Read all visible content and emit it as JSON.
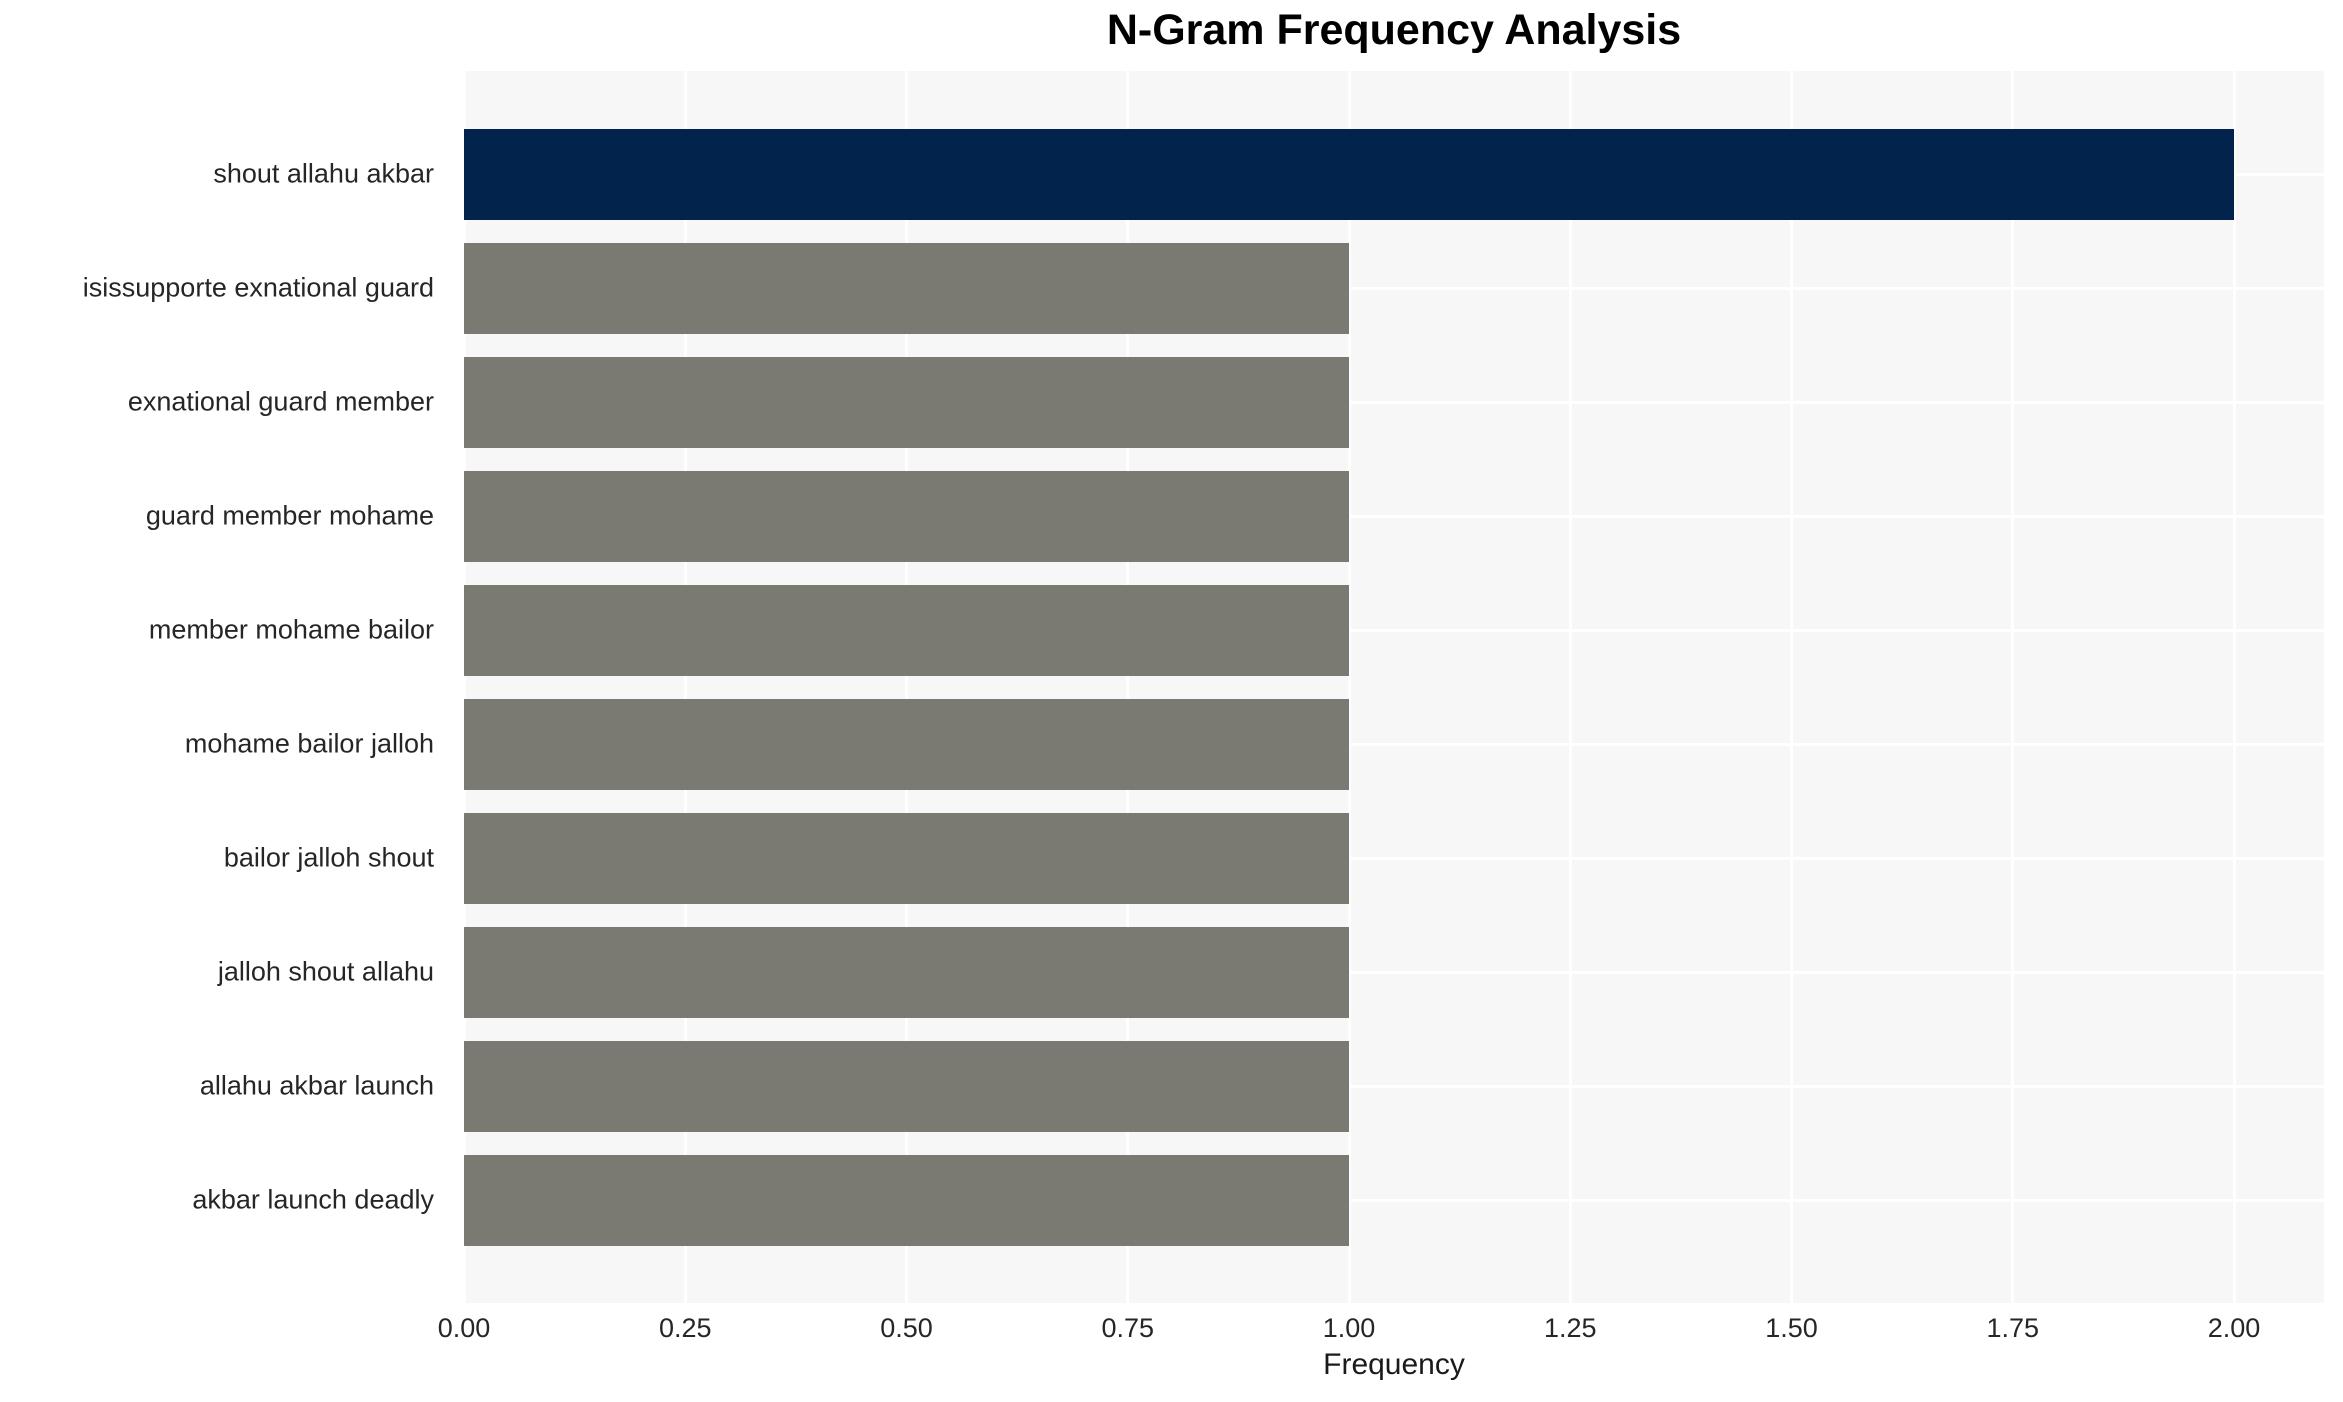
{
  "chart_data": {
    "type": "bar",
    "orientation": "horizontal",
    "title": "N-Gram Frequency Analysis",
    "xlabel": "Frequency",
    "ylabel": "",
    "categories": [
      "shout allahu akbar",
      "isissupporte exnational guard",
      "exnational guard member",
      "guard member mohame",
      "member mohame bailor",
      "mohame bailor jalloh",
      "bailor jalloh shout",
      "jalloh shout allahu",
      "allahu akbar launch",
      "akbar launch deadly"
    ],
    "values": [
      2,
      1,
      1,
      1,
      1,
      1,
      1,
      1,
      1,
      1
    ],
    "bar_colors": [
      "#02234b",
      "#7b7a72",
      "#7b7a72",
      "#7b7a72",
      "#7b7a72",
      "#7b7a72",
      "#7b7a72",
      "#7b7a72",
      "#7b7a72",
      "#7b7a72"
    ],
    "xlim": [
      0,
      2.1
    ],
    "xticks": [
      0,
      0.25,
      0.5,
      0.75,
      1.0,
      1.25,
      1.5,
      1.75,
      2.0
    ],
    "xtick_labels": [
      "0.00",
      "0.25",
      "0.50",
      "0.75",
      "1.00",
      "1.25",
      "1.50",
      "1.75",
      "2.00"
    ],
    "grid": true,
    "legend": false,
    "colors": {
      "highlight_bar": "#02234b",
      "default_bar": "#7b7a72",
      "plot_background": "#f7f7f7",
      "gridline": "#ffffff",
      "tick_text": "#262626",
      "title_text": "#000000"
    }
  }
}
